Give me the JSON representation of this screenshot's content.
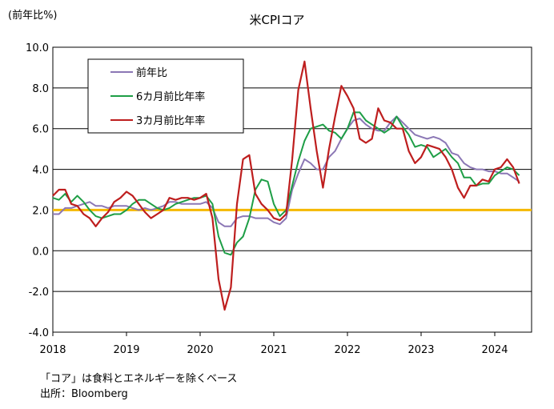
{
  "unit_label": "(前年比%)",
  "notes": {
    "line1": "「コア」は食料とエネルギーを除くベース",
    "line2": "出所：Bloomberg"
  },
  "chart_data": {
    "type": "line",
    "title": "米CPIコア",
    "ylabel": "(前年比%)",
    "ylim": [
      -4.0,
      10.0
    ],
    "yticks": [
      -4.0,
      -2.0,
      0.0,
      2.0,
      4.0,
      6.0,
      8.0,
      10.0
    ],
    "yticklabels": [
      "-4.0",
      "-2.0",
      "0.0",
      "2.0",
      "4.0",
      "6.0",
      "8.0",
      "10.0"
    ],
    "xlim": [
      2018.0,
      2024.5
    ],
    "xticks": [
      2018,
      2019,
      2020,
      2021,
      2022,
      2023,
      2024
    ],
    "xticklabels": [
      "2018",
      "2019",
      "2020",
      "2021",
      "2022",
      "2023",
      "2024"
    ],
    "grid": "horizontal",
    "legend_position": "top-left",
    "reference_line": {
      "value": 2.0,
      "color": "#F5B800"
    },
    "x": [
      2018.0,
      2018.083,
      2018.167,
      2018.25,
      2018.333,
      2018.417,
      2018.5,
      2018.583,
      2018.667,
      2018.75,
      2018.833,
      2018.917,
      2019.0,
      2019.083,
      2019.167,
      2019.25,
      2019.333,
      2019.417,
      2019.5,
      2019.583,
      2019.667,
      2019.75,
      2019.833,
      2019.917,
      2020.0,
      2020.083,
      2020.167,
      2020.25,
      2020.333,
      2020.417,
      2020.5,
      2020.583,
      2020.667,
      2020.75,
      2020.833,
      2020.917,
      2021.0,
      2021.083,
      2021.167,
      2021.25,
      2021.333,
      2021.417,
      2021.5,
      2021.583,
      2021.667,
      2021.75,
      2021.833,
      2021.917,
      2022.0,
      2022.083,
      2022.167,
      2022.25,
      2022.333,
      2022.417,
      2022.5,
      2022.583,
      2022.667,
      2022.75,
      2022.833,
      2022.917,
      2023.0,
      2023.083,
      2023.167,
      2023.25,
      2023.333,
      2023.417,
      2023.5,
      2023.583,
      2023.667,
      2023.75,
      2023.833,
      2023.917,
      2024.0,
      2024.083,
      2024.167,
      2024.25,
      2024.333
    ],
    "series": [
      {
        "name": "前年比",
        "color": "#8B77B5",
        "values": [
          1.8,
          1.8,
          2.1,
          2.1,
          2.2,
          2.3,
          2.4,
          2.2,
          2.2,
          2.1,
          2.2,
          2.2,
          2.2,
          2.1,
          2.0,
          2.1,
          2.0,
          2.1,
          2.2,
          2.4,
          2.4,
          2.3,
          2.3,
          2.3,
          2.3,
          2.4,
          2.1,
          1.4,
          1.2,
          1.2,
          1.6,
          1.7,
          1.7,
          1.6,
          1.6,
          1.6,
          1.4,
          1.3,
          1.6,
          3.0,
          3.8,
          4.5,
          4.3,
          4.0,
          4.0,
          4.6,
          4.9,
          5.5,
          6.0,
          6.4,
          6.5,
          6.2,
          6.0,
          5.9,
          5.9,
          6.3,
          6.6,
          6.3,
          6.0,
          5.7,
          5.6,
          5.5,
          5.6,
          5.5,
          5.3,
          4.8,
          4.7,
          4.3,
          4.1,
          4.0,
          4.0,
          3.9,
          3.9,
          3.8,
          3.8,
          3.6,
          3.4
        ]
      },
      {
        "name": "6カ月前比年率",
        "color": "#1E9E46",
        "values": [
          2.6,
          2.5,
          2.8,
          2.4,
          2.7,
          2.4,
          2.0,
          1.7,
          1.6,
          1.7,
          1.8,
          1.8,
          2.0,
          2.3,
          2.5,
          2.5,
          2.3,
          2.1,
          2.0,
          2.1,
          2.3,
          2.4,
          2.5,
          2.6,
          2.6,
          2.7,
          2.3,
          0.7,
          -0.1,
          -0.2,
          0.4,
          0.7,
          1.6,
          3.0,
          3.5,
          3.4,
          2.3,
          1.7,
          2.0,
          3.2,
          4.4,
          5.4,
          6.0,
          6.1,
          6.2,
          5.9,
          5.8,
          5.5,
          6.0,
          6.8,
          6.8,
          6.4,
          6.2,
          6.0,
          5.8,
          6.0,
          6.6,
          6.1,
          5.7,
          5.1,
          5.2,
          5.1,
          4.6,
          4.8,
          5.0,
          4.6,
          4.3,
          3.6,
          3.6,
          3.2,
          3.3,
          3.3,
          3.7,
          3.9,
          4.1,
          4.0,
          3.7
        ]
      },
      {
        "name": "3カ月前比年率",
        "color": "#BE1E1E",
        "values": [
          2.7,
          3.0,
          3.0,
          2.3,
          2.2,
          1.8,
          1.6,
          1.2,
          1.6,
          1.9,
          2.4,
          2.6,
          2.9,
          2.7,
          2.3,
          1.9,
          1.6,
          1.8,
          2.0,
          2.6,
          2.5,
          2.6,
          2.6,
          2.5,
          2.6,
          2.8,
          1.6,
          -1.4,
          -2.9,
          -1.8,
          2.3,
          4.5,
          4.7,
          2.8,
          2.3,
          2.0,
          1.6,
          1.5,
          1.8,
          4.5,
          7.9,
          9.3,
          7.0,
          4.9,
          3.1,
          5.0,
          6.6,
          8.1,
          7.6,
          7.0,
          5.5,
          5.3,
          5.5,
          7.0,
          6.4,
          6.3,
          6.0,
          6.0,
          4.9,
          4.3,
          4.6,
          5.2,
          5.1,
          5.0,
          4.6,
          4.0,
          3.1,
          2.6,
          3.2,
          3.2,
          3.5,
          3.4,
          4.0,
          4.1,
          4.5,
          4.1,
          3.3
        ]
      }
    ]
  }
}
